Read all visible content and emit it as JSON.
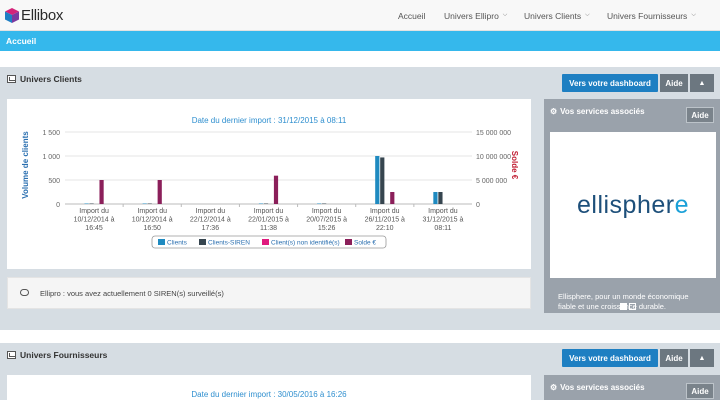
{
  "app": {
    "logo_text": "Ellibox"
  },
  "nav": {
    "items": [
      {
        "label": "Accueil",
        "has_menu": false
      },
      {
        "label": "Univers Ellipro",
        "has_menu": true
      },
      {
        "label": "Univers Clients",
        "has_menu": true
      },
      {
        "label": "Univers Fournisseurs",
        "has_menu": true
      }
    ]
  },
  "breadcrumb": {
    "label": "Accueil"
  },
  "clients": {
    "title": "Univers Clients",
    "dashboard_button": "Vers votre dashboard",
    "aide_button": "Aide",
    "chart_subtitle": "Date du dernier import : 31/12/2015 à 08:11",
    "services": {
      "title": "Vos services associés",
      "aide": "Aide",
      "brand": "ellisphere",
      "description": "Ellisphere, pour un monde économique fiable et une croissance durable."
    },
    "notice": "Ellipro : vous avez actuellement 0 SIREN(s) surveillé(s)"
  },
  "fournisseurs": {
    "title": "Univers Fournisseurs",
    "dashboard_button": "Vers votre dashboard",
    "aide_button": "Aide",
    "chart_subtitle": "Date du dernier import : 30/05/2016 à 16:26",
    "services": {
      "title": "Vos services associés",
      "aide": "Aide"
    }
  },
  "colors": {
    "accent": "#35b8ec",
    "dashboard_button": "#1e7fc2",
    "clients": "#1f8ac0",
    "clients_siren": "#36454f",
    "non_identifie": "#e0197d",
    "solde": "#8b1f5a"
  },
  "chart_data": {
    "type": "bar",
    "subtitle": "Date du dernier import : 31/12/2015 à 08:11",
    "ylabel": "Volume de clients",
    "ylabel_right": "Solde €",
    "ylim": [
      0,
      1500
    ],
    "ylim_right": [
      0,
      15000000
    ],
    "yticks": [
      "0",
      "500",
      "1 000",
      "1 500"
    ],
    "yticks_right": [
      "0",
      "5 000 000",
      "10 000 000",
      "15 000 000"
    ],
    "categories": [
      [
        "Import du",
        "10/12/2014 à",
        "16:45"
      ],
      [
        "Import du",
        "10/12/2014 à",
        "16:50"
      ],
      [
        "Import du",
        "22/12/2014 à",
        "17:36"
      ],
      [
        "Import du",
        "22/01/2015 à",
        "11:38"
      ],
      [
        "Import du",
        "20/07/2015 à",
        "15:26"
      ],
      [
        "Import du",
        "26/11/2015 à",
        "22:10"
      ],
      [
        "Import du",
        "31/12/2015 à",
        "08:11"
      ]
    ],
    "series": [
      {
        "name": "Clients",
        "axis": "left",
        "values": [
          10,
          10,
          0,
          10,
          10,
          1000,
          250
        ]
      },
      {
        "name": "Clients-SIREN",
        "axis": "left",
        "values": [
          10,
          10,
          0,
          10,
          10,
          970,
          250
        ]
      },
      {
        "name": "Client(s) non identifié(s)",
        "axis": "left",
        "values": [
          0,
          0,
          0,
          0,
          0,
          0,
          0
        ]
      },
      {
        "name": "Solde €",
        "axis": "right",
        "values": [
          5000000,
          5000000,
          0,
          5900000,
          0,
          2500000,
          0
        ]
      }
    ],
    "legend": "bottom",
    "grid": true
  }
}
